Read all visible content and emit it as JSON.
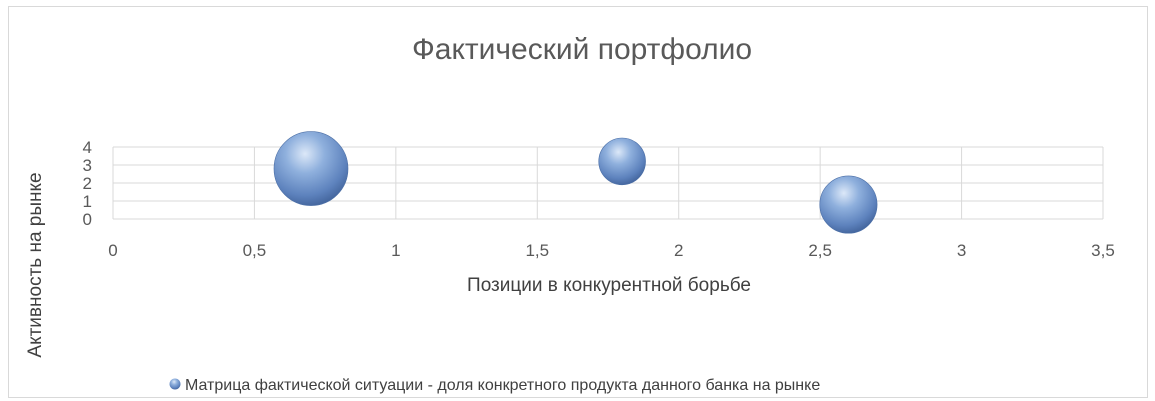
{
  "chart_data": {
    "type": "bubble",
    "title": "Фактический портфолио",
    "xlabel": "Позиции в конкурентной борьбе",
    "ylabel": "Активность на рынке",
    "xlim": [
      0,
      3.5
    ],
    "ylim": [
      0,
      4
    ],
    "x_ticks": [
      "0",
      "0,5",
      "1",
      "1,5",
      "2",
      "2,5",
      "3",
      "3,5"
    ],
    "y_ticks": [
      "0",
      "1",
      "2",
      "3",
      "4"
    ],
    "grid": true,
    "legend_position": "bottom",
    "series": [
      {
        "name": "Матрица фактической ситуации - доля конкретного продукта данного банка на рынке",
        "color": "#6f94cc",
        "points": [
          {
            "x": 0.7,
            "y": 2.8,
            "size": 5
          },
          {
            "x": 1.8,
            "y": 3.2,
            "size": 2
          },
          {
            "x": 2.6,
            "y": 0.8,
            "size": 3
          }
        ]
      }
    ]
  }
}
